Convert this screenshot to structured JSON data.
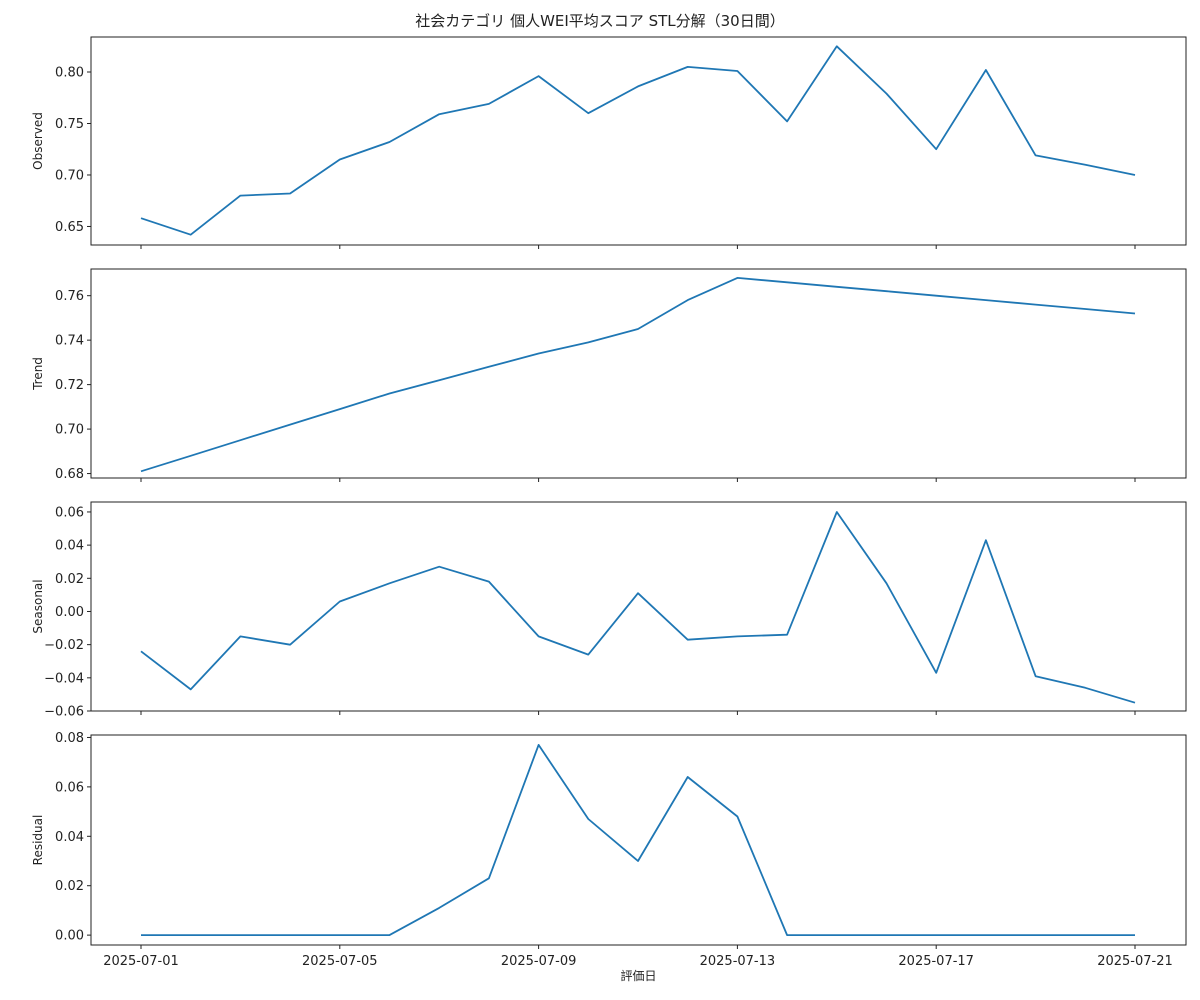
{
  "chart_data": {
    "type": "line",
    "title": "社会カテゴリ 個人WEI平均スコア STL分解（30日間）",
    "xlabel": "評価日",
    "x": [
      "2025-07-01",
      "2025-07-02",
      "2025-07-03",
      "2025-07-04",
      "2025-07-05",
      "2025-07-06",
      "2025-07-07",
      "2025-07-08",
      "2025-07-09",
      "2025-07-10",
      "2025-07-11",
      "2025-07-12",
      "2025-07-13",
      "2025-07-14",
      "2025-07-15",
      "2025-07-16",
      "2025-07-17",
      "2025-07-18",
      "2025-07-19",
      "2025-07-20",
      "2025-07-21"
    ],
    "xticks": [
      "2025-07-01",
      "2025-07-05",
      "2025-07-09",
      "2025-07-13",
      "2025-07-17",
      "2025-07-21"
    ],
    "line_color": "#1f77b4",
    "grid": false,
    "panels": [
      {
        "ylabel": "Observed",
        "ylim": [
          0.632,
          0.834
        ],
        "yticks": [
          "0.65",
          "0.70",
          "0.75",
          "0.80"
        ],
        "values": [
          0.658,
          0.642,
          0.68,
          0.682,
          0.715,
          0.732,
          0.759,
          0.769,
          0.796,
          0.76,
          0.786,
          0.805,
          0.801,
          0.752,
          0.825,
          0.779,
          0.725,
          0.802,
          0.719,
          0.71,
          0.7
        ]
      },
      {
        "ylabel": "Trend",
        "ylim": [
          0.678,
          0.772
        ],
        "yticks": [
          "0.68",
          "0.70",
          "0.72",
          "0.74",
          "0.76"
        ],
        "values": [
          0.681,
          0.688,
          0.695,
          0.702,
          0.709,
          0.716,
          0.722,
          0.728,
          0.734,
          0.739,
          0.745,
          0.758,
          0.768,
          0.766,
          0.764,
          0.762,
          0.76,
          0.758,
          0.756,
          0.754,
          0.752
        ]
      },
      {
        "ylabel": "Seasonal",
        "ylim": [
          -0.06,
          0.066
        ],
        "yticks": [
          "−0.06",
          "−0.04",
          "−0.02",
          "0.00",
          "0.02",
          "0.04",
          "0.06"
        ],
        "values": [
          -0.024,
          -0.047,
          -0.015,
          -0.02,
          0.006,
          0.017,
          0.027,
          0.018,
          -0.015,
          -0.026,
          0.011,
          -0.017,
          -0.015,
          -0.014,
          0.06,
          0.017,
          -0.037,
          0.043,
          -0.039,
          -0.046,
          -0.055
        ]
      },
      {
        "ylabel": "Residual",
        "ylim": [
          -0.004,
          0.081
        ],
        "yticks": [
          "0.00",
          "0.02",
          "0.04",
          "0.06",
          "0.08"
        ],
        "values": [
          0.0,
          0.0,
          0.0,
          0.0,
          0.0,
          0.0,
          0.011,
          0.023,
          0.077,
          0.047,
          0.03,
          0.064,
          0.048,
          0.0,
          0.0,
          0.0,
          0.0,
          0.0,
          0.0,
          0.0,
          0.0
        ]
      }
    ]
  }
}
